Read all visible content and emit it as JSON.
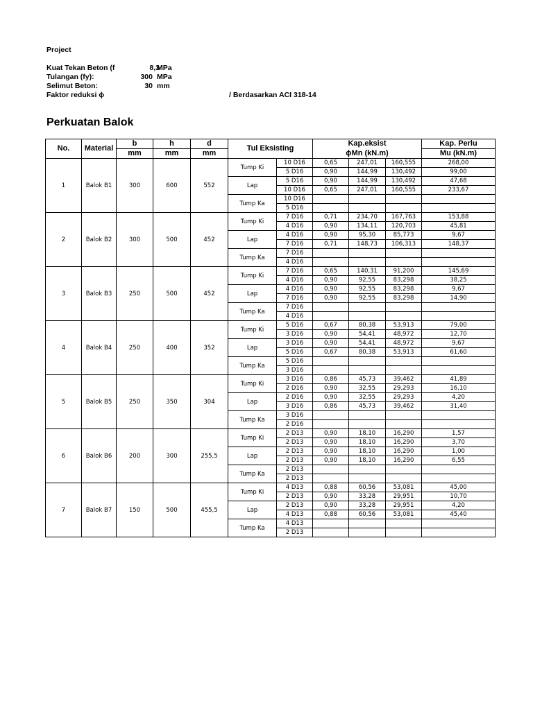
{
  "header": {
    "project_label": "Project",
    "fc_label": "Kuat Tekan Beton (f",
    "fc_value": "8,3",
    "fc_unit": "MPa",
    "fy_label": "Tulangan (fy):",
    "fy_value": "300",
    "fy_unit": "MPa",
    "cover_label": "Selimut Beton:",
    "cover_value": "30",
    "cover_unit": "mm",
    "phi_label": "Faktor reduksi ϕ",
    "phi_note": "/ Berdasarkan ACI 318-14"
  },
  "section_title": "Perkuatan Balok",
  "table": {
    "headers": {
      "no": "No.",
      "material": "Material",
      "b": "b",
      "h": "h",
      "d": "d",
      "b_unit": "mm",
      "h_unit": "mm",
      "d_unit": "mm",
      "tul": "Tul Eksisting",
      "kap_eksist": "Kap.eksist",
      "kap_eksist_sub": "ϕMn (kN.m)",
      "kap_perlu": "Kap. Perlu",
      "kap_perlu_sub": "Mu (kN.m)"
    },
    "beams": [
      {
        "no": "1",
        "material": "Balok B1",
        "b": "300",
        "h": "600",
        "d": "552",
        "sections": [
          {
            "label": "Tump Ki",
            "rows": [
              [
                "10 D16",
                "0,65",
                "247,01",
                "160,555",
                "268,00"
              ],
              [
                "5 D16",
                "0,90",
                "144,99",
                "130,492",
                "99,00"
              ]
            ]
          },
          {
            "label": "Lap",
            "rows": [
              [
                "5 D16",
                "0,90",
                "144,99",
                "130,492",
                "47,68"
              ],
              [
                "10 D16",
                "0,65",
                "247,01",
                "160,555",
                "233,67"
              ]
            ]
          },
          {
            "label": "Tump Ka",
            "rows": [
              [
                "10 D16",
                "",
                "",
                "",
                ""
              ],
              [
                "5 D16",
                "",
                "",
                "",
                ""
              ]
            ]
          }
        ]
      },
      {
        "no": "2",
        "material": "Balok B2",
        "b": "300",
        "h": "500",
        "d": "452",
        "sections": [
          {
            "label": "Tump Ki",
            "rows": [
              [
                "7 D16",
                "0,71",
                "234,70",
                "167,763",
                "153,88"
              ],
              [
                "4 D16",
                "0,90",
                "134,11",
                "120,703",
                "45,81"
              ]
            ]
          },
          {
            "label": "Lap",
            "rows": [
              [
                "4 D16",
                "0,90",
                "95,30",
                "85,773",
                "9,67"
              ],
              [
                "7 D16",
                "0,71",
                "148,73",
                "106,313",
                "148,37"
              ]
            ]
          },
          {
            "label": "Tump Ka",
            "rows": [
              [
                "7 D16",
                "",
                "",
                "",
                ""
              ],
              [
                "4 D16",
                "",
                "",
                "",
                ""
              ]
            ]
          }
        ]
      },
      {
        "no": "3",
        "material": "Balok B3",
        "b": "250",
        "h": "500",
        "d": "452",
        "sections": [
          {
            "label": "Tump Ki",
            "rows": [
              [
                "7 D16",
                "0,65",
                "140,31",
                "91,200",
                "145,69"
              ],
              [
                "4 D16",
                "0,90",
                "92,55",
                "83,298",
                "38,25"
              ]
            ]
          },
          {
            "label": "Lap",
            "rows": [
              [
                "4 D16",
                "0,90",
                "92,55",
                "83,298",
                "9,67"
              ],
              [
                "7 D16",
                "0,90",
                "92,55",
                "83,298",
                "14,90"
              ]
            ]
          },
          {
            "label": "Tump Ka",
            "rows": [
              [
                "7 D16",
                "",
                "",
                "",
                ""
              ],
              [
                "4 D16",
                "",
                "",
                "",
                ""
              ]
            ]
          }
        ]
      },
      {
        "no": "4",
        "material": "Balok B4",
        "b": "250",
        "h": "400",
        "d": "352",
        "sections": [
          {
            "label": "Tump Ki",
            "rows": [
              [
                "5 D16",
                "0,67",
                "80,38",
                "53,913",
                "79,00"
              ],
              [
                "3 D16",
                "0,90",
                "54,41",
                "48,972",
                "12,70"
              ]
            ]
          },
          {
            "label": "Lap",
            "rows": [
              [
                "3 D16",
                "0,90",
                "54,41",
                "48,972",
                "9,67"
              ],
              [
                "5 D16",
                "0,67",
                "80,38",
                "53,913",
                "61,60"
              ]
            ]
          },
          {
            "label": "Tump Ka",
            "rows": [
              [
                "5 D16",
                "",
                "",
                "",
                ""
              ],
              [
                "3 D16",
                "",
                "",
                "",
                ""
              ]
            ]
          }
        ]
      },
      {
        "no": "5",
        "material": "Balok B5",
        "b": "250",
        "h": "350",
        "d": "304",
        "sections": [
          {
            "label": "Tump Ki",
            "rows": [
              [
                "3 D16",
                "0,86",
                "45,73",
                "39,462",
                "41,89"
              ],
              [
                "2 D16",
                "0,90",
                "32,55",
                "29,293",
                "16,10"
              ]
            ]
          },
          {
            "label": "Lap",
            "rows": [
              [
                "2 D16",
                "0,90",
                "32,55",
                "29,293",
                "4,20"
              ],
              [
                "3 D16",
                "0,86",
                "45,73",
                "39,462",
                "31,40"
              ]
            ]
          },
          {
            "label": "Tump Ka",
            "rows": [
              [
                "3 D16",
                "",
                "",
                "",
                ""
              ],
              [
                "2 D16",
                "",
                "",
                "",
                ""
              ]
            ]
          }
        ]
      },
      {
        "no": "6",
        "material": "Balok B6",
        "b": "200",
        "h": "300",
        "d": "255,5",
        "sections": [
          {
            "label": "Tump Ki",
            "rows": [
              [
                "2 D13",
                "0,90",
                "18,10",
                "16,290",
                "1,57"
              ],
              [
                "2 D13",
                "0,90",
                "18,10",
                "16,290",
                "3,70"
              ]
            ]
          },
          {
            "label": "Lap",
            "rows": [
              [
                "2 D13",
                "0,90",
                "18,10",
                "16,290",
                "1,00"
              ],
              [
                "2 D13",
                "0,90",
                "18,10",
                "16,290",
                "6,55"
              ]
            ]
          },
          {
            "label": "Tump Ka",
            "rows": [
              [
                "2 D13",
                "",
                "",
                "",
                ""
              ],
              [
                "2 D13",
                "",
                "",
                "",
                ""
              ]
            ]
          }
        ]
      },
      {
        "no": "7",
        "material": "Balok B7",
        "b": "150",
        "h": "500",
        "d": "455,5",
        "sections": [
          {
            "label": "Tump Ki",
            "rows": [
              [
                "4 D13",
                "0,88",
                "60,56",
                "53,081",
                "45,00"
              ],
              [
                "2 D13",
                "0,90",
                "33,28",
                "29,951",
                "10,70"
              ]
            ]
          },
          {
            "label": "Lap",
            "rows": [
              [
                "2 D13",
                "0,90",
                "33,28",
                "29,951",
                "4,20"
              ],
              [
                "4 D13",
                "0,88",
                "60,56",
                "53,081",
                "45,40"
              ]
            ]
          },
          {
            "label": "Tump Ka",
            "rows": [
              [
                "4 D13",
                "",
                "",
                "",
                ""
              ],
              [
                "2 D13",
                "",
                "",
                "",
                ""
              ]
            ]
          }
        ]
      }
    ]
  }
}
